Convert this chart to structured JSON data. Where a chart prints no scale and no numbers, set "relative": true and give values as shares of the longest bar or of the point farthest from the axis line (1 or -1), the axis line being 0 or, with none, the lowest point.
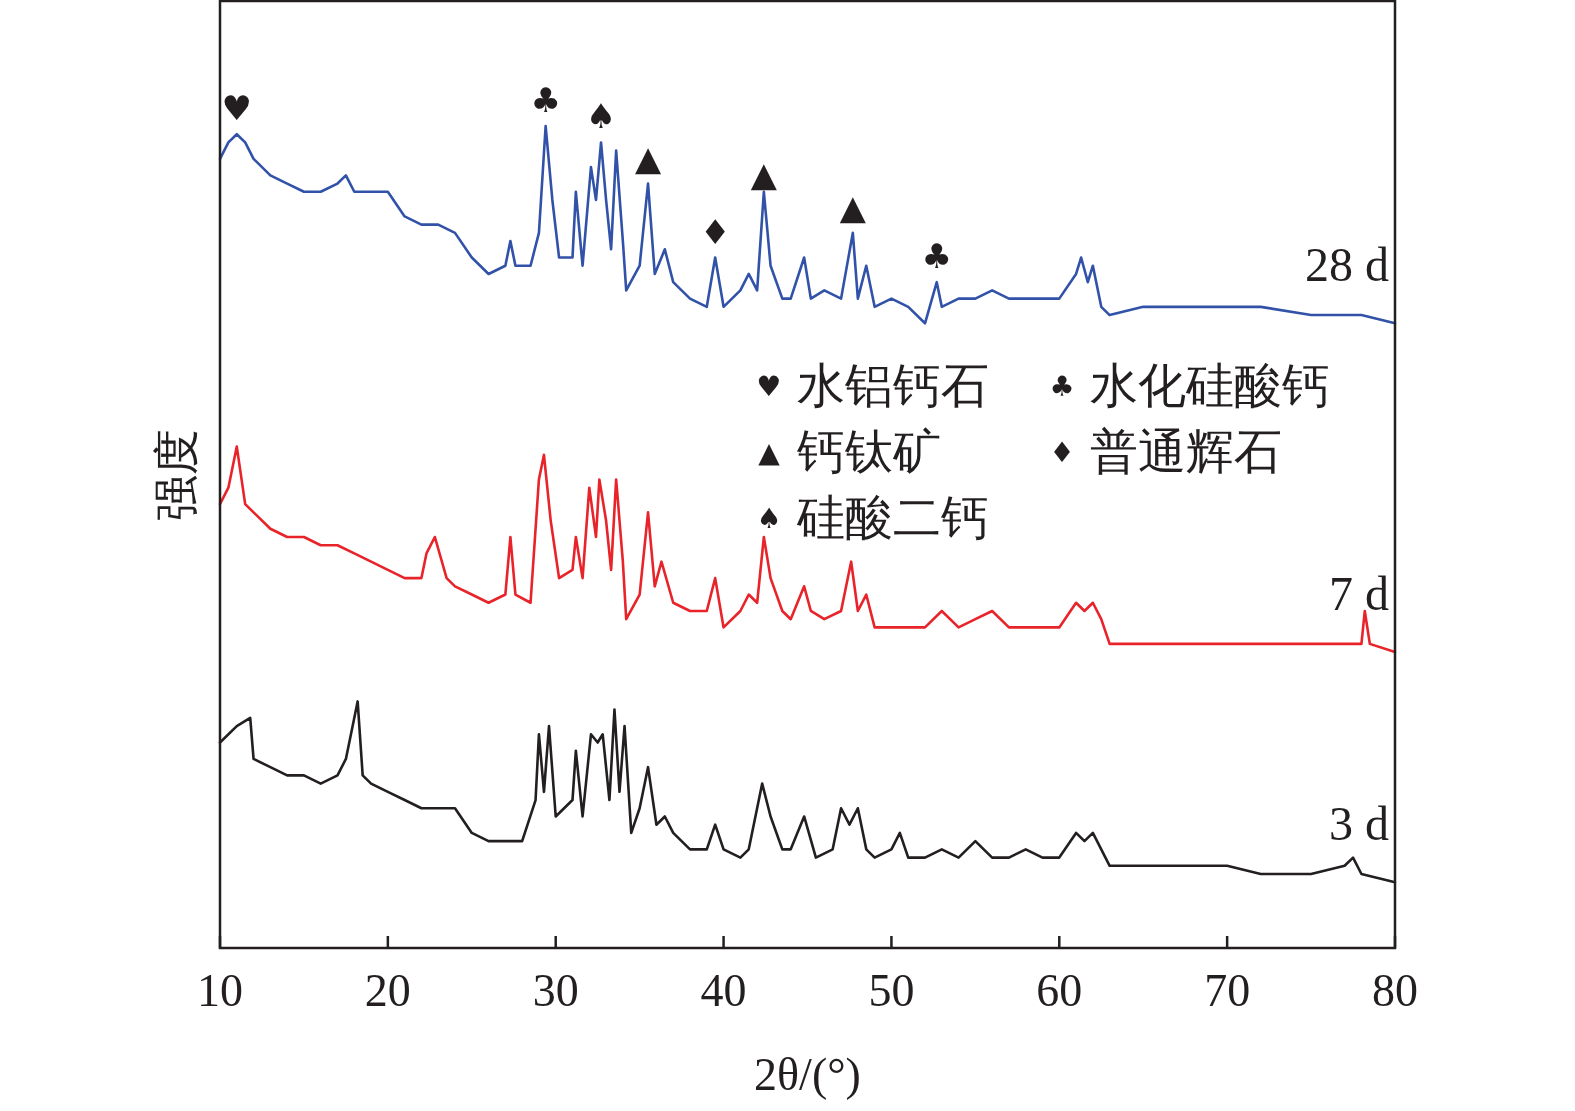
{
  "chart_data": {
    "type": "line",
    "relative": true,
    "xlabel": "2θ/(°)",
    "ylabel": "强度",
    "xlim": [
      10,
      80
    ],
    "xticks": [
      10,
      20,
      30,
      40,
      50,
      60,
      70,
      80
    ],
    "legend": false,
    "grid": false,
    "line_style": "solid",
    "marker": "none",
    "annotations": [
      {
        "text": "♥",
        "x": 11,
        "y": 0.99
      },
      {
        "text": "♣",
        "x": 29.4,
        "y": 1.0
      },
      {
        "text": "♠",
        "x": 32.7,
        "y": 0.98
      },
      {
        "text": "▲",
        "x": 35.5,
        "y": 0.93
      },
      {
        "text": "♦",
        "x": 39.5,
        "y": 0.84
      },
      {
        "text": "▲",
        "x": 42.4,
        "y": 0.91
      },
      {
        "text": "▲",
        "x": 47.7,
        "y": 0.87
      },
      {
        "text": "♣",
        "x": 52.7,
        "y": 0.81
      },
      "♥ 水铝钙石",
      "♣ 水化硅酸钙",
      "▲ 钙钛矿",
      "♦ 普通辉石",
      "♠ 硅酸二钙"
    ],
    "series": [
      {
        "name": "28 d",
        "color": "#3152a8",
        "x": [
          10,
          10.5,
          11,
          11.5,
          12,
          13,
          14,
          15,
          16,
          17,
          17.5,
          18,
          19,
          20,
          21,
          22,
          23,
          24,
          25,
          26,
          27,
          27.3,
          27.6,
          28.5,
          29,
          29.4,
          29.8,
          30.2,
          31,
          31.2,
          31.6,
          32.1,
          32.4,
          32.7,
          33,
          33.3,
          33.6,
          34,
          34.2,
          35,
          35.5,
          35.9,
          36.5,
          37,
          38,
          39,
          39.5,
          40,
          41,
          41.5,
          42,
          42.4,
          42.8,
          43.5,
          44,
          44.8,
          45.2,
          46,
          47,
          47.7,
          48,
          48.5,
          49,
          50,
          51,
          52,
          52.7,
          53,
          54,
          55,
          56,
          57,
          58,
          59,
          60,
          61,
          61.3,
          61.7,
          62,
          62.5,
          63,
          65,
          67,
          70,
          72,
          75,
          78,
          80
        ],
        "values": [
          0.96,
          0.98,
          0.99,
          0.98,
          0.96,
          0.94,
          0.93,
          0.92,
          0.92,
          0.93,
          0.94,
          0.92,
          0.92,
          0.92,
          0.89,
          0.88,
          0.88,
          0.87,
          0.84,
          0.82,
          0.83,
          0.86,
          0.83,
          0.83,
          0.87,
          1.0,
          0.91,
          0.84,
          0.84,
          0.92,
          0.83,
          0.95,
          0.91,
          0.98,
          0.91,
          0.85,
          0.97,
          0.86,
          0.8,
          0.83,
          0.93,
          0.82,
          0.85,
          0.81,
          0.79,
          0.78,
          0.84,
          0.78,
          0.8,
          0.82,
          0.8,
          0.92,
          0.83,
          0.79,
          0.79,
          0.84,
          0.79,
          0.8,
          0.79,
          0.87,
          0.79,
          0.83,
          0.78,
          0.79,
          0.78,
          0.76,
          0.81,
          0.78,
          0.79,
          0.79,
          0.8,
          0.79,
          0.79,
          0.79,
          0.79,
          0.82,
          0.84,
          0.81,
          0.83,
          0.78,
          0.77,
          0.78,
          0.78,
          0.78,
          0.78,
          0.77,
          0.77,
          0.76
        ]
      },
      {
        "name": "7 d",
        "color": "#e8242a",
        "x": [
          10,
          10.5,
          11,
          11.5,
          12,
          13,
          14,
          15,
          16,
          17,
          18,
          19,
          20,
          21,
          22,
          22.3,
          22.8,
          23.5,
          24,
          25,
          26,
          27,
          27.3,
          27.6,
          28.5,
          29,
          29.3,
          29.7,
          30.2,
          31,
          31.2,
          31.6,
          32,
          32.4,
          32.6,
          33,
          33.3,
          33.6,
          34,
          34.2,
          35,
          35.5,
          35.9,
          36.3,
          37,
          38,
          39,
          39.5,
          40,
          41,
          41.5,
          42,
          42.4,
          42.8,
          43.5,
          44,
          44.8,
          45.2,
          46,
          47,
          47.6,
          48,
          48.5,
          49,
          50,
          51,
          52,
          53,
          54,
          55,
          56,
          57,
          58,
          59,
          60,
          61,
          61.5,
          62,
          62.5,
          63,
          65,
          67,
          70,
          72,
          75,
          78,
          78.2,
          78.5,
          80
        ],
        "values": [
          0.54,
          0.56,
          0.61,
          0.54,
          0.53,
          0.51,
          0.5,
          0.5,
          0.49,
          0.49,
          0.48,
          0.47,
          0.46,
          0.45,
          0.45,
          0.48,
          0.5,
          0.45,
          0.44,
          0.43,
          0.42,
          0.43,
          0.5,
          0.43,
          0.42,
          0.57,
          0.6,
          0.52,
          0.45,
          0.46,
          0.5,
          0.45,
          0.56,
          0.5,
          0.57,
          0.52,
          0.46,
          0.57,
          0.47,
          0.4,
          0.43,
          0.53,
          0.44,
          0.47,
          0.42,
          0.41,
          0.41,
          0.45,
          0.39,
          0.41,
          0.43,
          0.42,
          0.5,
          0.45,
          0.41,
          0.4,
          0.44,
          0.41,
          0.4,
          0.41,
          0.47,
          0.41,
          0.43,
          0.39,
          0.39,
          0.39,
          0.39,
          0.41,
          0.39,
          0.4,
          0.41,
          0.39,
          0.39,
          0.39,
          0.39,
          0.42,
          0.41,
          0.42,
          0.4,
          0.37,
          0.37,
          0.37,
          0.37,
          0.37,
          0.37,
          0.37,
          0.41,
          0.37,
          0.36
        ]
      },
      {
        "name": "3 d",
        "color": "#231f20",
        "x": [
          10,
          11,
          11.8,
          12,
          13,
          14,
          15,
          16,
          17,
          17.5,
          18.2,
          18.5,
          19,
          20,
          21,
          22,
          23,
          24,
          25,
          26,
          27,
          28,
          28.8,
          29,
          29.3,
          29.6,
          30,
          31,
          31.2,
          31.6,
          32.1,
          32.5,
          32.8,
          33.2,
          33.5,
          33.8,
          34.1,
          34.5,
          35,
          35.5,
          36,
          36.5,
          37,
          38,
          39,
          39.5,
          40,
          41,
          41.5,
          42.3,
          42.8,
          43.5,
          44,
          44.8,
          45.5,
          46.5,
          47,
          47.5,
          48,
          48.5,
          49,
          50,
          50.5,
          51,
          52,
          53,
          54,
          55,
          56,
          57,
          58,
          59,
          60,
          61,
          61.5,
          62,
          62.5,
          63,
          65,
          67,
          70,
          72,
          75,
          77,
          77.5,
          78,
          80
        ],
        "values": [
          0.25,
          0.27,
          0.28,
          0.23,
          0.22,
          0.21,
          0.21,
          0.2,
          0.21,
          0.23,
          0.3,
          0.21,
          0.2,
          0.19,
          0.18,
          0.17,
          0.17,
          0.17,
          0.14,
          0.13,
          0.13,
          0.13,
          0.18,
          0.26,
          0.19,
          0.27,
          0.16,
          0.18,
          0.24,
          0.16,
          0.26,
          0.25,
          0.26,
          0.18,
          0.29,
          0.19,
          0.27,
          0.14,
          0.17,
          0.22,
          0.15,
          0.16,
          0.14,
          0.12,
          0.12,
          0.15,
          0.12,
          0.11,
          0.12,
          0.2,
          0.16,
          0.12,
          0.12,
          0.16,
          0.11,
          0.12,
          0.17,
          0.15,
          0.17,
          0.12,
          0.11,
          0.12,
          0.14,
          0.11,
          0.11,
          0.12,
          0.11,
          0.13,
          0.11,
          0.11,
          0.12,
          0.11,
          0.11,
          0.14,
          0.13,
          0.14,
          0.12,
          0.1,
          0.1,
          0.1,
          0.1,
          0.09,
          0.09,
          0.1,
          0.11,
          0.09,
          0.08
        ]
      }
    ]
  }
}
